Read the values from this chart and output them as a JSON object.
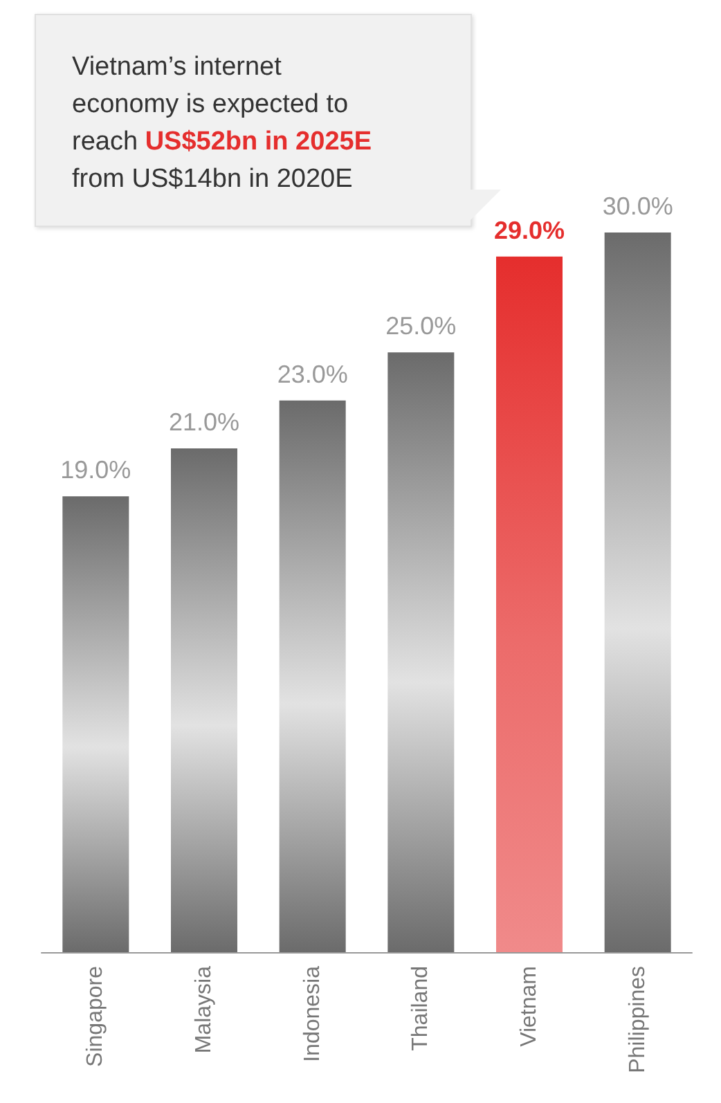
{
  "chart_data": {
    "type": "bar",
    "categories": [
      "Singapore",
      "Malaysia",
      "Indonesia",
      "Thailand",
      "Vietnam",
      "Philippines"
    ],
    "values": [
      19,
      21,
      23,
      25,
      29,
      30
    ],
    "colors": [
      "#6b6b6b",
      "#6b6b6b",
      "#6b6b6b",
      "#6b6b6b",
      "#e52e2d",
      "#6b6b6b"
    ],
    "value_labels": [
      "19.0%",
      "21.0%",
      "23.0%",
      "25.0%",
      "29.0%",
      "30.0%"
    ],
    "ylim": [
      0,
      30
    ],
    "tick_labels": "x",
    "annotations": [
      "Vietnam’s internet economy is expected to reach ",
      "US$52bn in 2025E",
      " from US$14bn in 2020E"
    ]
  }
}
